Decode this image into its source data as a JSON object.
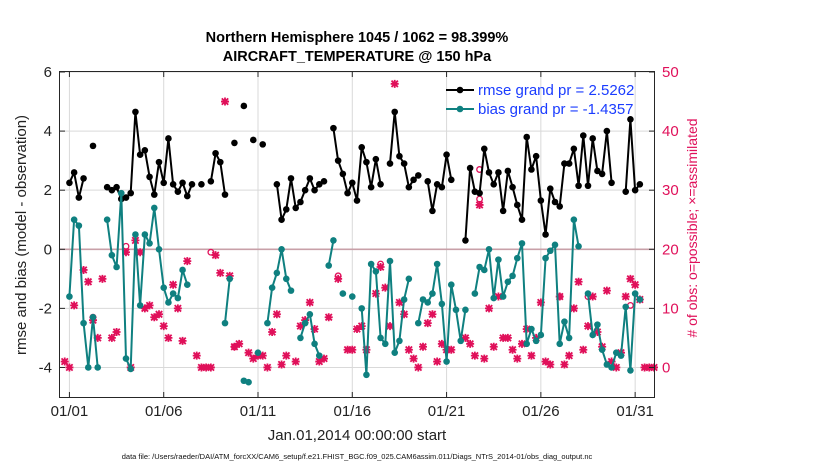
{
  "chart_data": {
    "type": "line",
    "title": "Northern Hemisphere 1045 / 1062 = 98.399%",
    "subtitle": "AIRCRAFT_TEMPERATURE @ 150 hPa",
    "xlabel": "Jan.01,2014 00:00:00 start",
    "ylabel": "rmse and bias (model - observation)",
    "y2label": "# of obs: o=possible; ×=assimilated",
    "footer": "data file: /Users/raeder/DAI/ATM_forcXX/CAM6_setup/f.e21.FHIST_BGC.f09_025.CAM6assim.011/Diags_NTrS_2014-01/obs_diag_output.nc",
    "xlim": [
      0.5,
      32
    ],
    "ylim": [
      -5,
      6
    ],
    "y2lim": [
      -5,
      50
    ],
    "grid": true,
    "x_ticks": [
      1,
      6,
      11,
      16,
      21,
      26,
      31
    ],
    "x_tick_labels": [
      "01/01",
      "01/06",
      "01/11",
      "01/16",
      "01/21",
      "01/26",
      "01/31"
    ],
    "y_ticks": [
      -4,
      -2,
      0,
      2,
      4,
      6
    ],
    "y_tick_labels": [
      "-4",
      "-2",
      "0",
      "2",
      "4",
      "6"
    ],
    "y2_ticks": [
      0,
      10,
      20,
      30,
      40,
      50
    ],
    "y2_tick_labels": [
      "0",
      "10",
      "20",
      "30",
      "40",
      "50"
    ],
    "legend_position": "top-right",
    "colors": {
      "rmse": "#000000",
      "bias": "#0f8080",
      "obs": "#e0105a",
      "zero_line": "#c8a0a8"
    },
    "series": [
      {
        "name": "rmse grand pr = 2.5262",
        "values": [
          [
            1.0,
            2.25
          ],
          [
            1.25,
            2.6
          ],
          [
            1.5,
            1.75
          ],
          [
            1.75,
            2.4
          ],
          [
            2.25,
            3.5
          ],
          [
            3.0,
            2.1
          ],
          [
            3.25,
            2.0
          ],
          [
            3.5,
            2.1
          ],
          [
            3.75,
            1.7
          ],
          [
            4.0,
            1.75
          ],
          [
            4.25,
            1.9
          ],
          [
            4.5,
            4.65
          ],
          [
            4.75,
            3.2
          ],
          [
            5.0,
            3.35
          ],
          [
            5.25,
            2.45
          ],
          [
            5.5,
            1.85
          ],
          [
            5.75,
            2.95
          ],
          [
            6.0,
            2.25
          ],
          [
            6.25,
            3.75
          ],
          [
            6.5,
            2.2
          ],
          [
            6.75,
            1.95
          ],
          [
            7.0,
            2.25
          ],
          [
            7.25,
            1.8
          ],
          [
            7.5,
            2.2
          ],
          [
            8.0,
            2.2
          ],
          [
            8.5,
            2.3
          ],
          [
            8.75,
            3.25
          ],
          [
            9.0,
            2.95
          ],
          [
            9.25,
            1.85
          ],
          [
            9.75,
            3.6
          ],
          [
            10.25,
            4.85
          ],
          [
            10.75,
            3.7
          ],
          [
            11.25,
            3.55
          ],
          [
            12.0,
            2.2
          ],
          [
            12.25,
            1.0
          ],
          [
            12.5,
            1.35
          ],
          [
            12.75,
            2.4
          ],
          [
            13.0,
            1.4
          ],
          [
            13.25,
            1.6
          ],
          [
            13.5,
            2.0
          ],
          [
            13.75,
            2.4
          ],
          [
            14.0,
            2.0
          ],
          [
            14.25,
            2.2
          ],
          [
            14.5,
            2.3
          ],
          [
            15.0,
            4.1
          ],
          [
            15.25,
            3.0
          ],
          [
            15.5,
            2.55
          ],
          [
            15.75,
            1.9
          ],
          [
            16.0,
            2.25
          ],
          [
            16.25,
            1.65
          ],
          [
            16.5,
            3.45
          ],
          [
            16.75,
            2.95
          ],
          [
            17.0,
            2.1
          ],
          [
            17.25,
            3.05
          ],
          [
            17.5,
            2.2
          ],
          [
            18.0,
            2.9
          ],
          [
            18.25,
            4.65
          ],
          [
            18.5,
            3.15
          ],
          [
            18.75,
            2.9
          ],
          [
            19.0,
            2.1
          ],
          [
            19.25,
            2.35
          ],
          [
            19.5,
            2.5
          ],
          [
            20.0,
            2.3
          ],
          [
            20.25,
            1.3
          ],
          [
            20.5,
            2.2
          ],
          [
            20.75,
            2.1
          ],
          [
            21.0,
            3.2
          ],
          [
            21.25,
            2.35
          ],
          [
            22.0,
            0.3
          ],
          [
            22.25,
            2.75
          ],
          [
            22.5,
            1.95
          ],
          [
            22.75,
            1.9
          ],
          [
            23.0,
            3.4
          ],
          [
            23.25,
            2.6
          ],
          [
            23.5,
            2.2
          ],
          [
            23.75,
            2.6
          ],
          [
            24.0,
            1.3
          ],
          [
            24.25,
            2.65
          ],
          [
            24.5,
            2.1
          ],
          [
            24.75,
            1.5
          ],
          [
            25.0,
            1.0
          ],
          [
            25.25,
            3.8
          ],
          [
            25.5,
            2.7
          ],
          [
            25.75,
            3.15
          ],
          [
            26.0,
            1.65
          ],
          [
            26.25,
            0.5
          ],
          [
            26.5,
            2.05
          ],
          [
            26.75,
            1.6
          ],
          [
            27.0,
            1.45
          ],
          [
            27.25,
            2.9
          ],
          [
            27.5,
            2.9
          ],
          [
            27.75,
            3.4
          ],
          [
            28.0,
            2.15
          ],
          [
            28.25,
            3.85
          ],
          [
            28.5,
            2.15
          ],
          [
            28.75,
            3.75
          ],
          [
            29.0,
            2.65
          ],
          [
            29.25,
            2.55
          ],
          [
            29.5,
            4.0
          ],
          [
            29.75,
            2.25
          ],
          [
            30.5,
            1.95
          ],
          [
            30.75,
            4.4
          ],
          [
            31.0,
            2.0
          ],
          [
            31.25,
            2.2
          ]
        ]
      },
      {
        "name": "bias grand pr = -1.4357",
        "values": [
          [
            1.0,
            -1.6
          ],
          [
            1.25,
            1.0
          ],
          [
            1.5,
            0.8
          ],
          [
            1.75,
            -2.5
          ],
          [
            2.0,
            -4.0
          ],
          [
            2.25,
            -2.3
          ],
          [
            2.5,
            -4.0
          ],
          [
            3.0,
            1.0
          ],
          [
            3.25,
            -0.2
          ],
          [
            3.5,
            -0.6
          ],
          [
            3.75,
            1.9
          ],
          [
            4.0,
            -3.7
          ],
          [
            4.25,
            -4.05
          ],
          [
            4.5,
            0.5
          ],
          [
            4.75,
            -1.9
          ],
          [
            5.0,
            0.5
          ],
          [
            5.25,
            0.2
          ],
          [
            5.5,
            1.4
          ],
          [
            5.75,
            0.0
          ],
          [
            6.0,
            -1.3
          ],
          [
            6.25,
            -1.8
          ],
          [
            6.5,
            -1.5
          ],
          [
            6.75,
            -1.65
          ],
          [
            7.0,
            -0.7
          ],
          [
            7.25,
            -1.2
          ],
          [
            9.25,
            -2.5
          ],
          [
            9.5,
            -1.0
          ],
          [
            10.25,
            -4.45
          ],
          [
            10.5,
            -4.5
          ],
          [
            11.0,
            -3.5
          ],
          [
            11.5,
            -2.5
          ],
          [
            11.75,
            -1.3
          ],
          [
            12.0,
            -0.8
          ],
          [
            12.25,
            0.0
          ],
          [
            12.5,
            -1.0
          ],
          [
            12.75,
            -1.4
          ],
          [
            13.25,
            -3.0
          ],
          [
            13.5,
            -2.5
          ],
          [
            13.75,
            -2.2
          ],
          [
            14.0,
            -3.2
          ],
          [
            14.25,
            -3.6
          ],
          [
            14.75,
            -0.55
          ],
          [
            15.0,
            0.3
          ],
          [
            15.5,
            -1.5
          ],
          [
            16.0,
            -1.6
          ],
          [
            16.5,
            -2.0
          ],
          [
            16.75,
            -4.25
          ],
          [
            17.0,
            -0.5
          ],
          [
            17.25,
            -0.75
          ],
          [
            17.5,
            -3.0
          ],
          [
            17.75,
            -3.2
          ],
          [
            18.0,
            -0.4
          ],
          [
            18.25,
            -3.5
          ],
          [
            18.5,
            -3.1
          ],
          [
            18.75,
            -1.7
          ],
          [
            19.0,
            -1.0
          ],
          [
            19.5,
            -2.5
          ],
          [
            19.75,
            -1.7
          ],
          [
            20.0,
            -1.8
          ],
          [
            20.25,
            -1.5
          ],
          [
            20.5,
            -0.5
          ],
          [
            20.75,
            -1.85
          ],
          [
            21.0,
            -3.8
          ],
          [
            21.25,
            -1.2
          ],
          [
            21.5,
            -2.05
          ],
          [
            21.75,
            -3.1
          ],
          [
            22.0,
            -2.05
          ],
          [
            22.5,
            -1.5
          ],
          [
            22.75,
            -0.6
          ],
          [
            23.0,
            -0.7
          ],
          [
            23.25,
            0.0
          ],
          [
            23.5,
            -1.65
          ],
          [
            23.75,
            -0.35
          ],
          [
            24.0,
            -1.6
          ],
          [
            24.25,
            -1.1
          ],
          [
            24.5,
            -0.9
          ],
          [
            24.75,
            -0.3
          ],
          [
            25.0,
            0.2
          ],
          [
            25.25,
            -3.2
          ],
          [
            25.5,
            -2.7
          ],
          [
            25.75,
            -3.1
          ],
          [
            26.0,
            -2.9
          ],
          [
            26.25,
            -0.3
          ],
          [
            26.5,
            -0.05
          ],
          [
            26.75,
            0.15
          ],
          [
            27.0,
            -3.2
          ],
          [
            27.25,
            -2.45
          ],
          [
            27.5,
            -3.0
          ],
          [
            27.75,
            1.0
          ],
          [
            28.0,
            0.1
          ],
          [
            28.5,
            -1.5
          ],
          [
            28.75,
            -2.9
          ],
          [
            29.0,
            -2.55
          ],
          [
            29.25,
            -3.4
          ],
          [
            29.5,
            -3.9
          ],
          [
            29.75,
            -4.0
          ],
          [
            30.0,
            -3.5
          ],
          [
            30.25,
            -3.6
          ],
          [
            30.5,
            -1.95
          ],
          [
            30.75,
            -4.1
          ],
          [
            31.0,
            -1.5
          ],
          [
            31.25,
            -1.7
          ]
        ]
      }
    ],
    "obs_possible_markers": [
      [
        2.25,
        8.5
      ],
      [
        4.0,
        20.5
      ],
      [
        8.5,
        19.5
      ],
      [
        9.75,
        3.5
      ],
      [
        15.25,
        15.5
      ],
      [
        17.5,
        17.5
      ],
      [
        22.75,
        33.5
      ],
      [
        22.75,
        28.5
      ],
      [
        27.0,
        12.0
      ],
      [
        28.5,
        12.0
      ],
      [
        30.75,
        10.5
      ]
    ],
    "obs_assimilated_markers": [
      [
        0.75,
        1.0
      ],
      [
        1.0,
        0.0
      ],
      [
        1.25,
        10.5
      ],
      [
        1.75,
        16.5
      ],
      [
        2.0,
        14.5
      ],
      [
        2.25,
        8.0
      ],
      [
        2.5,
        5.0
      ],
      [
        2.75,
        15.0
      ],
      [
        3.25,
        5.0
      ],
      [
        3.5,
        6.0
      ],
      [
        4.0,
        19.5
      ],
      [
        4.25,
        0.0
      ],
      [
        4.5,
        21.5
      ],
      [
        4.75,
        19.5
      ],
      [
        5.0,
        10.0
      ],
      [
        5.25,
        10.5
      ],
      [
        5.5,
        8.5
      ],
      [
        5.75,
        9.0
      ],
      [
        6.0,
        7.0
      ],
      [
        6.25,
        5.0
      ],
      [
        6.5,
        14.0
      ],
      [
        6.75,
        10.0
      ],
      [
        7.0,
        4.5
      ],
      [
        7.25,
        18.0
      ],
      [
        7.75,
        2.0
      ],
      [
        8.0,
        0.0
      ],
      [
        8.25,
        0.0
      ],
      [
        8.5,
        0.0
      ],
      [
        8.75,
        19.0
      ],
      [
        9.0,
        16.0
      ],
      [
        9.25,
        45.0
      ],
      [
        9.5,
        15.5
      ],
      [
        9.75,
        3.5
      ],
      [
        10.0,
        4.0
      ],
      [
        10.5,
        2.5
      ],
      [
        10.75,
        1.5
      ],
      [
        11.0,
        2.0
      ],
      [
        11.25,
        2.0
      ],
      [
        11.5,
        0.0
      ],
      [
        11.75,
        6.0
      ],
      [
        12.0,
        9.0
      ],
      [
        12.25,
        0.5
      ],
      [
        12.5,
        2.0
      ],
      [
        13.0,
        1.0
      ],
      [
        13.25,
        7.0
      ],
      [
        13.5,
        8.0
      ],
      [
        13.75,
        11.0
      ],
      [
        14.0,
        6.5
      ],
      [
        14.25,
        1.0
      ],
      [
        14.5,
        1.5
      ],
      [
        14.75,
        8.5
      ],
      [
        15.25,
        15.0
      ],
      [
        15.75,
        3.0
      ],
      [
        16.0,
        3.0
      ],
      [
        16.25,
        6.5
      ],
      [
        16.5,
        7.0
      ],
      [
        16.75,
        3.0
      ],
      [
        17.25,
        12.5
      ],
      [
        17.5,
        17.0
      ],
      [
        17.75,
        13.5
      ],
      [
        18.0,
        7.0
      ],
      [
        18.25,
        48.0
      ],
      [
        18.5,
        11.0
      ],
      [
        18.75,
        9.0
      ],
      [
        19.0,
        3.0
      ],
      [
        19.25,
        1.5
      ],
      [
        19.5,
        0.0
      ],
      [
        19.75,
        3.5
      ],
      [
        20.0,
        7.5
      ],
      [
        20.25,
        9.0
      ],
      [
        20.5,
        1.0
      ],
      [
        20.75,
        4.0
      ],
      [
        21.0,
        3.0
      ],
      [
        21.25,
        3.0
      ],
      [
        22.0,
        5.0
      ],
      [
        22.25,
        4.0
      ],
      [
        22.5,
        2.0
      ],
      [
        22.75,
        27.5
      ],
      [
        23.0,
        1.5
      ],
      [
        23.25,
        10.0
      ],
      [
        23.5,
        3.5
      ],
      [
        23.75,
        12.0
      ],
      [
        24.0,
        5.0
      ],
      [
        24.25,
        5.0
      ],
      [
        24.5,
        3.0
      ],
      [
        24.75,
        1.5
      ],
      [
        25.0,
        4.0
      ],
      [
        25.25,
        6.5
      ],
      [
        25.5,
        2.0
      ],
      [
        25.75,
        5.0
      ],
      [
        26.0,
        11.0
      ],
      [
        26.25,
        1.0
      ],
      [
        26.5,
        0.5
      ],
      [
        27.0,
        12.0
      ],
      [
        27.25,
        0.5
      ],
      [
        27.5,
        2.0
      ],
      [
        27.75,
        10.0
      ],
      [
        28.0,
        14.5
      ],
      [
        28.25,
        3.0
      ],
      [
        28.5,
        7.0
      ],
      [
        28.75,
        12.0
      ],
      [
        29.0,
        6.0
      ],
      [
        29.25,
        3.5
      ],
      [
        29.5,
        13.0
      ],
      [
        29.75,
        1.0
      ],
      [
        30.0,
        0.0
      ],
      [
        30.25,
        2.5
      ],
      [
        30.5,
        12.0
      ],
      [
        30.75,
        15.0
      ],
      [
        31.0,
        14.0
      ],
      [
        31.25,
        11.5
      ],
      [
        31.5,
        0.0
      ],
      [
        31.75,
        0.0
      ],
      [
        32.0,
        0.0
      ]
    ]
  }
}
